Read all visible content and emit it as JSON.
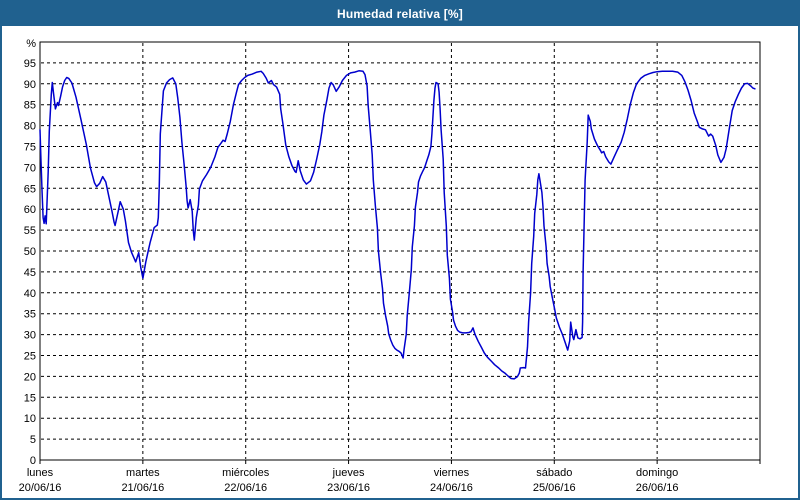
{
  "header": {
    "title": "Humedad relativa [%]"
  },
  "colors": {
    "header_bg": "#20618F",
    "window_border": "#20618F",
    "plot_border": "#000000",
    "grid": "#000000",
    "line": "#0000CD",
    "background": "#FFFFFF",
    "title_text": "#FFFFFF",
    "axis_text": "#000000"
  },
  "chart_data": {
    "type": "line",
    "title": "Humedad relativa [%]",
    "ylabel": "%",
    "y_unit_label": "%",
    "ylim": [
      0,
      100
    ],
    "y_ticks": [
      0,
      5,
      10,
      15,
      20,
      25,
      30,
      35,
      40,
      45,
      50,
      55,
      60,
      65,
      70,
      75,
      80,
      85,
      90,
      95
    ],
    "grid": "dashed",
    "legend": "none",
    "x_axis_days": [
      {
        "weekday": "lunes",
        "date": "20/06/16"
      },
      {
        "weekday": "martes",
        "date": "21/06/16"
      },
      {
        "weekday": "miércoles",
        "date": "22/06/16"
      },
      {
        "weekday": "jueves",
        "date": "23/06/16"
      },
      {
        "weekday": "viernes",
        "date": "24/06/16"
      },
      {
        "weekday": "sábado",
        "date": "25/06/16"
      },
      {
        "weekday": "domingo",
        "date": "26/06/16"
      }
    ],
    "xlim_days": [
      0,
      7
    ],
    "series": [
      {
        "name": "Humedad relativa",
        "color": "#0000CD",
        "points": [
          [
            0.0,
            79
          ],
          [
            0.01,
            71.5
          ],
          [
            0.02,
            64
          ],
          [
            0.03,
            58
          ],
          [
            0.04,
            56.6
          ],
          [
            0.05,
            58.4
          ],
          [
            0.06,
            56.5
          ],
          [
            0.08,
            69
          ],
          [
            0.09,
            78.7
          ],
          [
            0.11,
            87.5
          ],
          [
            0.12,
            90.3
          ],
          [
            0.13,
            88
          ],
          [
            0.14,
            86
          ],
          [
            0.15,
            84
          ],
          [
            0.17,
            85.5
          ],
          [
            0.18,
            84.8
          ],
          [
            0.2,
            87
          ],
          [
            0.22,
            89.3
          ],
          [
            0.24,
            90.8
          ],
          [
            0.26,
            91.5
          ],
          [
            0.28,
            91.3
          ],
          [
            0.31,
            90.2
          ],
          [
            0.35,
            86.8
          ],
          [
            0.4,
            81.3
          ],
          [
            0.45,
            75.5
          ],
          [
            0.49,
            69.9
          ],
          [
            0.53,
            66.3
          ],
          [
            0.55,
            65.4
          ],
          [
            0.58,
            66.2
          ],
          [
            0.61,
            67.8
          ],
          [
            0.64,
            66.5
          ],
          [
            0.67,
            63
          ],
          [
            0.7,
            59.5
          ],
          [
            0.72,
            56.9
          ],
          [
            0.73,
            56.1
          ],
          [
            0.76,
            59.5
          ],
          [
            0.78,
            61.8
          ],
          [
            0.81,
            60
          ],
          [
            0.83,
            57.2
          ],
          [
            0.86,
            52
          ],
          [
            0.89,
            49.7
          ],
          [
            0.93,
            47.4
          ],
          [
            0.96,
            49.6
          ],
          [
            0.98,
            46
          ],
          [
            1.0,
            43.5
          ],
          [
            1.03,
            47.5
          ],
          [
            1.07,
            52
          ],
          [
            1.11,
            55.6
          ],
          [
            1.14,
            56.2
          ],
          [
            1.15,
            58
          ],
          [
            1.16,
            66
          ],
          [
            1.17,
            78
          ],
          [
            1.19,
            85
          ],
          [
            1.2,
            88.3
          ],
          [
            1.23,
            90.2
          ],
          [
            1.26,
            91
          ],
          [
            1.29,
            91.4
          ],
          [
            1.32,
            90
          ],
          [
            1.34,
            86.5
          ],
          [
            1.36,
            82
          ],
          [
            1.38,
            76
          ],
          [
            1.4,
            71
          ],
          [
            1.42,
            65.5
          ],
          [
            1.43,
            62
          ],
          [
            1.44,
            60.3
          ],
          [
            1.46,
            62.3
          ],
          [
            1.48,
            59.5
          ],
          [
            1.49,
            54.8
          ],
          [
            1.5,
            52.6
          ],
          [
            1.52,
            58
          ],
          [
            1.54,
            61
          ],
          [
            1.55,
            64.8
          ],
          [
            1.58,
            66.8
          ],
          [
            1.62,
            68.3
          ],
          [
            1.66,
            70
          ],
          [
            1.7,
            72.5
          ],
          [
            1.73,
            74.8
          ],
          [
            1.76,
            75.8
          ],
          [
            1.78,
            76.5
          ],
          [
            1.8,
            76.2
          ],
          [
            1.82,
            78
          ],
          [
            1.85,
            81
          ],
          [
            1.88,
            85
          ],
          [
            1.91,
            88
          ],
          [
            1.93,
            89.8
          ],
          [
            1.96,
            90.8
          ],
          [
            1.99,
            91.5
          ],
          [
            2.02,
            92
          ],
          [
            2.06,
            92.3
          ],
          [
            2.11,
            92.8
          ],
          [
            2.15,
            93
          ],
          [
            2.17,
            92.5
          ],
          [
            2.2,
            91.3
          ],
          [
            2.22,
            90.2
          ],
          [
            2.25,
            90.8
          ],
          [
            2.27,
            89.8
          ],
          [
            2.3,
            89.2
          ],
          [
            2.33,
            87.5
          ],
          [
            2.34,
            84
          ],
          [
            2.36,
            80.8
          ],
          [
            2.39,
            75.3
          ],
          [
            2.42,
            72.5
          ],
          [
            2.45,
            70.4
          ],
          [
            2.48,
            69
          ],
          [
            2.49,
            68.8
          ],
          [
            2.51,
            71.6
          ],
          [
            2.53,
            69.2
          ],
          [
            2.56,
            67
          ],
          [
            2.59,
            66
          ],
          [
            2.63,
            66.8
          ],
          [
            2.66,
            68.8
          ],
          [
            2.69,
            72
          ],
          [
            2.72,
            75.5
          ],
          [
            2.74,
            78.5
          ],
          [
            2.76,
            82.5
          ],
          [
            2.79,
            86.3
          ],
          [
            2.81,
            89
          ],
          [
            2.83,
            90.3
          ],
          [
            2.85,
            89.8
          ],
          [
            2.88,
            88.2
          ],
          [
            2.91,
            89.3
          ],
          [
            2.94,
            90.8
          ],
          [
            2.98,
            92
          ],
          [
            3.02,
            92.6
          ],
          [
            3.06,
            92.8
          ],
          [
            3.1,
            93.1
          ],
          [
            3.14,
            93
          ],
          [
            3.16,
            92.2
          ],
          [
            3.18,
            89.5
          ],
          [
            3.19,
            85
          ],
          [
            3.21,
            79
          ],
          [
            3.23,
            73
          ],
          [
            3.24,
            67
          ],
          [
            3.26,
            61
          ],
          [
            3.28,
            55.5
          ],
          [
            3.29,
            50
          ],
          [
            3.31,
            45
          ],
          [
            3.33,
            41
          ],
          [
            3.34,
            37.5
          ],
          [
            3.36,
            34.5
          ],
          [
            3.38,
            32
          ],
          [
            3.39,
            30.2
          ],
          [
            3.41,
            28.7
          ],
          [
            3.43,
            27.5
          ],
          [
            3.45,
            26.7
          ],
          [
            3.47,
            26.3
          ],
          [
            3.49,
            26
          ],
          [
            3.51,
            25.6
          ],
          [
            3.53,
            24.4
          ],
          [
            3.54,
            26.5
          ],
          [
            3.56,
            30
          ],
          [
            3.57,
            34.5
          ],
          [
            3.59,
            40
          ],
          [
            3.61,
            45.5
          ],
          [
            3.62,
            51
          ],
          [
            3.64,
            56
          ],
          [
            3.65,
            60.5
          ],
          [
            3.67,
            64
          ],
          [
            3.68,
            66.5
          ],
          [
            3.7,
            68
          ],
          [
            3.72,
            69
          ],
          [
            3.74,
            70
          ],
          [
            3.76,
            71.5
          ],
          [
            3.78,
            73
          ],
          [
            3.8,
            75
          ],
          [
            3.81,
            78
          ],
          [
            3.82,
            82
          ],
          [
            3.83,
            86
          ],
          [
            3.84,
            89
          ],
          [
            3.85,
            90.3
          ],
          [
            3.87,
            90
          ],
          [
            3.88,
            88
          ],
          [
            3.89,
            84
          ],
          [
            3.9,
            79
          ],
          [
            3.92,
            72
          ],
          [
            3.93,
            64
          ],
          [
            3.95,
            56
          ],
          [
            3.96,
            49
          ],
          [
            3.98,
            43.5
          ],
          [
            3.99,
            38.5
          ],
          [
            4.01,
            35.5
          ],
          [
            4.02,
            33.5
          ],
          [
            4.04,
            32
          ],
          [
            4.06,
            31
          ],
          [
            4.08,
            30.6
          ],
          [
            4.11,
            30.4
          ],
          [
            4.14,
            30.4
          ],
          [
            4.17,
            30.5
          ],
          [
            4.19,
            30.7
          ],
          [
            4.21,
            31.6
          ],
          [
            4.23,
            30
          ],
          [
            4.26,
            28.4
          ],
          [
            4.29,
            27
          ],
          [
            4.32,
            25.6
          ],
          [
            4.35,
            24.6
          ],
          [
            4.39,
            23.6
          ],
          [
            4.42,
            22.8
          ],
          [
            4.46,
            22
          ],
          [
            4.49,
            21.3
          ],
          [
            4.52,
            20.8
          ],
          [
            4.55,
            20.1
          ],
          [
            4.58,
            19.5
          ],
          [
            4.61,
            19.4
          ],
          [
            4.64,
            19.9
          ],
          [
            4.66,
            20.8
          ],
          [
            4.67,
            22
          ],
          [
            4.7,
            22.1
          ],
          [
            4.72,
            22
          ],
          [
            4.74,
            27
          ],
          [
            4.75,
            33
          ],
          [
            4.77,
            40
          ],
          [
            4.78,
            47
          ],
          [
            4.8,
            53.5
          ],
          [
            4.81,
            59
          ],
          [
            4.83,
            63.5
          ],
          [
            4.84,
            67
          ],
          [
            4.85,
            68.5
          ],
          [
            4.86,
            67
          ],
          [
            4.88,
            64
          ],
          [
            4.89,
            60.5
          ],
          [
            4.9,
            56
          ],
          [
            4.92,
            51
          ],
          [
            4.93,
            47
          ],
          [
            4.95,
            44
          ],
          [
            4.96,
            41.5
          ],
          [
            4.98,
            39
          ],
          [
            5.0,
            36.5
          ],
          [
            5.02,
            34
          ],
          [
            5.05,
            31.8
          ],
          [
            5.08,
            30
          ],
          [
            5.11,
            27.8
          ],
          [
            5.13,
            26.3
          ],
          [
            5.15,
            28.5
          ],
          [
            5.16,
            33
          ],
          [
            5.18,
            29.5
          ],
          [
            5.19,
            28.8
          ],
          [
            5.21,
            31.2
          ],
          [
            5.23,
            29.2
          ],
          [
            5.25,
            29
          ],
          [
            5.27,
            29.3
          ],
          [
            5.275,
            33
          ],
          [
            5.28,
            45
          ],
          [
            5.29,
            56
          ],
          [
            5.3,
            67
          ],
          [
            5.32,
            76
          ],
          [
            5.33,
            82.5
          ],
          [
            5.35,
            81
          ],
          [
            5.36,
            79.2
          ],
          [
            5.39,
            76.8
          ],
          [
            5.42,
            75.2
          ],
          [
            5.45,
            74
          ],
          [
            5.46,
            73.5
          ],
          [
            5.48,
            73.8
          ],
          [
            5.5,
            72.5
          ],
          [
            5.53,
            71.3
          ],
          [
            5.55,
            70.8
          ],
          [
            5.58,
            72.4
          ],
          [
            5.61,
            74
          ],
          [
            5.65,
            76
          ],
          [
            5.68,
            78.4
          ],
          [
            5.71,
            81.6
          ],
          [
            5.74,
            85.2
          ],
          [
            5.77,
            88
          ],
          [
            5.8,
            90
          ],
          [
            5.84,
            91.3
          ],
          [
            5.88,
            92
          ],
          [
            5.92,
            92.4
          ],
          [
            5.96,
            92.7
          ],
          [
            6.0,
            92.9
          ],
          [
            6.05,
            93
          ],
          [
            6.1,
            93
          ],
          [
            6.15,
            93
          ],
          [
            6.2,
            92.8
          ],
          [
            6.24,
            92
          ],
          [
            6.27,
            90.5
          ],
          [
            6.3,
            88.5
          ],
          [
            6.33,
            86
          ],
          [
            6.36,
            83
          ],
          [
            6.39,
            81
          ],
          [
            6.41,
            79.6
          ],
          [
            6.44,
            79.2
          ],
          [
            6.47,
            79
          ],
          [
            6.5,
            77.5
          ],
          [
            6.52,
            78
          ],
          [
            6.54,
            77.5
          ],
          [
            6.57,
            75.2
          ],
          [
            6.59,
            73
          ],
          [
            6.62,
            71.2
          ],
          [
            6.65,
            72.4
          ],
          [
            6.67,
            74.4
          ],
          [
            6.7,
            79
          ],
          [
            6.73,
            83.6
          ],
          [
            6.76,
            85.8
          ],
          [
            6.79,
            87.5
          ],
          [
            6.82,
            89
          ],
          [
            6.85,
            90
          ],
          [
            6.88,
            90.1
          ],
          [
            6.91,
            89.5
          ],
          [
            6.93,
            89
          ],
          [
            6.95,
            88.8
          ]
        ]
      }
    ]
  }
}
